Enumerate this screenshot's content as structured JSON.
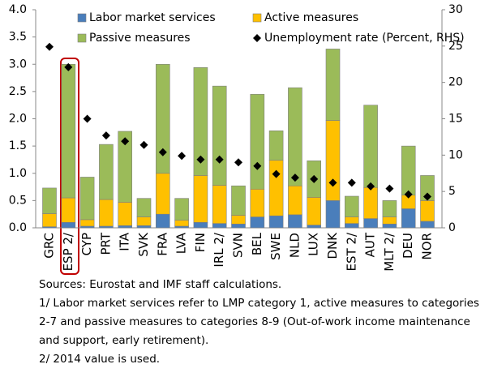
{
  "chart_data": {
    "type": "bar",
    "stacked": true,
    "categories": [
      "GRC",
      "ESP 2/",
      "CYP",
      "PRT",
      "ITA",
      "SVK",
      "FRA",
      "LVA",
      "FIN",
      "IRL 2/",
      "SVN",
      "BEL",
      "SWE",
      "NLD",
      "LUX",
      "DNK",
      "EST 2/",
      "AUT",
      "MLT 2/",
      "DEU",
      "NOR"
    ],
    "series": [
      {
        "name": "Labor market services",
        "color": "#4a7ebb",
        "values": [
          0.02,
          0.1,
          0.03,
          0.03,
          0.04,
          0.04,
          0.25,
          0.03,
          0.1,
          0.08,
          0.07,
          0.2,
          0.22,
          0.24,
          0.05,
          0.5,
          0.08,
          0.17,
          0.07,
          0.35,
          0.12
        ]
      },
      {
        "name": "Active measures",
        "color": "#ffc000",
        "values": [
          0.24,
          0.45,
          0.12,
          0.49,
          0.43,
          0.16,
          0.75,
          0.11,
          0.86,
          0.7,
          0.16,
          0.51,
          1.02,
          0.53,
          0.51,
          1.47,
          0.12,
          0.57,
          0.13,
          0.25,
          0.38
        ]
      },
      {
        "name": "Passive measures",
        "color": "#9bbb59",
        "values": [
          0.47,
          2.45,
          0.78,
          1.01,
          1.3,
          0.34,
          2.0,
          0.4,
          1.98,
          1.82,
          0.54,
          1.74,
          0.54,
          1.8,
          0.67,
          1.31,
          0.38,
          1.51,
          0.3,
          0.9,
          0.46
        ]
      },
      {
        "name": "Unemployment rate (Percent, RHS)",
        "color": "#000000",
        "axis": "y2",
        "marker": "diamond",
        "values": [
          24.9,
          22.1,
          15.0,
          12.7,
          11.9,
          11.4,
          10.4,
          9.9,
          9.4,
          9.4,
          9.0,
          8.5,
          7.4,
          6.9,
          6.7,
          6.2,
          6.2,
          5.7,
          5.4,
          4.6,
          4.3
        ]
      }
    ],
    "ylim": [
      0,
      4
    ],
    "yticks": [
      {
        "value": 0,
        "label": "0.0"
      },
      0.5,
      {
        "value": 1,
        "label": "1.0"
      },
      1.5,
      {
        "value": 2,
        "label": "2.0"
      },
      2.5,
      {
        "value": 3,
        "label": "3.0"
      },
      3.5,
      {
        "value": 4,
        "label": "4.0"
      }
    ],
    "y2lim": [
      0,
      30
    ],
    "y2ticks": [
      0,
      5,
      10,
      15,
      20,
      25,
      30
    ],
    "grid": false,
    "legend": "top",
    "notes": [
      "Sources: Eurostat and IMF staff calculations.",
      "1/ Labor market services refer to LMP category 1, active measures to categories 2-7 and passive measures to categories 8-9 (Out-of-work income maintenance and support, early retirement).",
      "2/ 2014 value is used."
    ]
  }
}
